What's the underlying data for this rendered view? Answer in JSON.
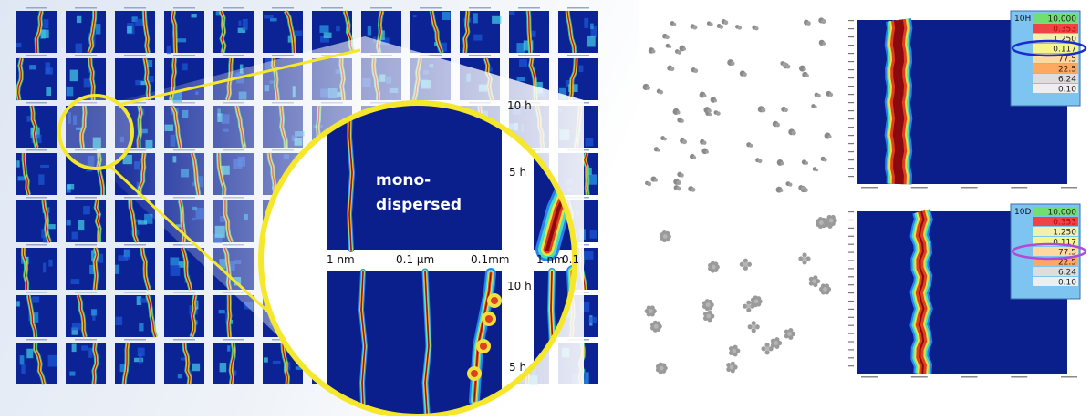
{
  "zoom_panels": {
    "label_lines": [
      "mono-",
      "dispersed"
    ],
    "time_labels": {
      "top": "10 h",
      "mid": "5 h",
      "bottom_top": "10 h",
      "bottom_mid": "5 h"
    },
    "size_labels": [
      "1 nm",
      "0.1 µm",
      "0.1mm"
    ],
    "size_labels_right": [
      "1 nm",
      "0.1"
    ]
  },
  "heatmap_top": {
    "tag": "10H",
    "legend": [
      "10.000",
      "0.353",
      "1.250",
      "0.117",
      "77.5",
      "22.5",
      "6.24",
      "0.10"
    ],
    "legend_colors": [
      "#6fe06f",
      "#ee4444",
      "#f0f0b0",
      "#f5f590",
      "#ffd9a0",
      "#ffa860",
      "#dddddd",
      "#eeeeee"
    ]
  },
  "heatmap_bottom": {
    "tag": "10D",
    "legend": [
      "10.000",
      "0.353",
      "1.250",
      "0.117",
      "77.5",
      "22.5",
      "6.24",
      "0.10"
    ],
    "legend_colors": [
      "#6fe06f",
      "#ee4444",
      "#f0f0b0",
      "#f5f590",
      "#ffd9a0",
      "#ffa860",
      "#dddddd",
      "#eeeeee"
    ]
  },
  "colors": {
    "deep_blue": "#0a1f8c",
    "highlight_yellow": "#f5e72b",
    "hot_red": "#c0141a",
    "ellipse_top": "#1a2bd0",
    "ellipse_bottom": "#b04ad8"
  }
}
